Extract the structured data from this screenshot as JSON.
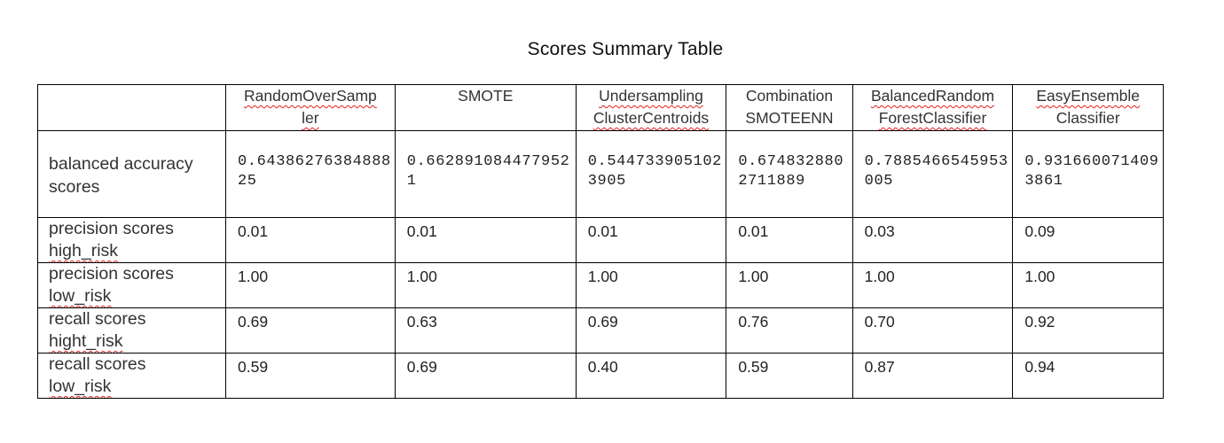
{
  "title": "Scores Summary Table",
  "table": {
    "headers": [
      {
        "line1": "",
        "line2": ""
      },
      {
        "line1": "RandomOverSamp",
        "line2": "ler"
      },
      {
        "line1": "SMOTE",
        "line2": ""
      },
      {
        "line1": "Undersampling",
        "line2": "ClusterCentroids"
      },
      {
        "line1": "Combination",
        "line2": "SMOTEENN"
      },
      {
        "line1": "BalancedRandom",
        "line2": "ForestClassifier"
      },
      {
        "line1": "EasyEnsemble",
        "line2": "Classifier"
      }
    ],
    "rows": [
      {
        "label_line1": "balanced accuracy",
        "label_line2": "scores",
        "values": [
          "0.6438627638488825",
          "0.6628910844779521",
          "0.5447339051023905",
          "0.6748328802711889",
          "0.7885466545953005",
          "0.9316600714093861"
        ]
      },
      {
        "label_line1": "precision scores",
        "label_line2": "high_risk",
        "values": [
          "0.01",
          "0.01",
          "0.01",
          "0.01",
          "0.03",
          "0.09"
        ]
      },
      {
        "label_line1": "precision scores",
        "label_line2": "low_risk",
        "values": [
          "1.00",
          "1.00",
          "1.00",
          "1.00",
          "1.00",
          "1.00"
        ]
      },
      {
        "label_line1": "recall scores",
        "label_line2": "hight_risk",
        "values": [
          "0.69",
          "0.63",
          "0.69",
          "0.76",
          "0.70",
          "0.92"
        ]
      },
      {
        "label_line1": "recall scores",
        "label_line2": "low_risk",
        "values": [
          "0.59",
          "0.69",
          "0.40",
          "0.59",
          "0.87",
          "0.94"
        ]
      }
    ]
  },
  "colors": {
    "spellcheck_underline": "#e02020",
    "border": "#000000",
    "text": "#222222"
  }
}
